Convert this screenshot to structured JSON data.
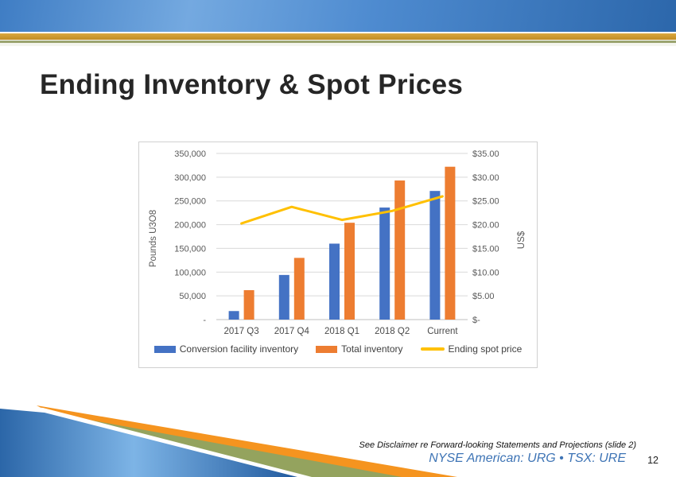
{
  "slide": {
    "title": "Ending Inventory & Spot Prices",
    "page_number": "12",
    "footer": {
      "disclaimer": "See Disclaimer re Forward-looking Statements and Projections (slide 2)",
      "ticker": "NYSE American: URG • TSX: URE"
    }
  },
  "chart_data": {
    "type": "bar",
    "subtype": "grouped bars with secondary-axis line",
    "categories": [
      "2017 Q3",
      "2017 Q4",
      "2018 Q1",
      "2018 Q2",
      "Current"
    ],
    "series": [
      {
        "name": "Conversion facility inventory",
        "type": "bar",
        "axis": "left",
        "color": "#4472C4",
        "values": [
          18000,
          94000,
          160000,
          236000,
          271000
        ]
      },
      {
        "name": "Total inventory",
        "type": "bar",
        "axis": "left",
        "color": "#ED7D31",
        "values": [
          62000,
          130000,
          204000,
          293000,
          322000
        ]
      },
      {
        "name": "Ending spot price",
        "type": "line",
        "axis": "right",
        "color": "#FFC000",
        "values": [
          20.25,
          23.75,
          21.0,
          22.9,
          25.95
        ]
      }
    ],
    "left_axis": {
      "label": "Pounds U3O8",
      "min": 0,
      "max": 350000,
      "step": 50000,
      "tick_labels": [
        "-",
        "50,000",
        "100,000",
        "150,000",
        "200,000",
        "250,000",
        "300,000",
        "350,000"
      ]
    },
    "right_axis": {
      "label": "US$",
      "min": 0,
      "max": 35,
      "step": 5,
      "tick_labels": [
        "$-",
        "$5.00",
        "$10.00",
        "$15.00",
        "$20.00",
        "$25.00",
        "$30.00",
        "$35.00"
      ]
    },
    "grid": true,
    "legend_position": "bottom",
    "colors": {
      "gridline": "#d9d9d9",
      "axis_text": "#595959",
      "baseline": "#bfbfbf"
    }
  }
}
